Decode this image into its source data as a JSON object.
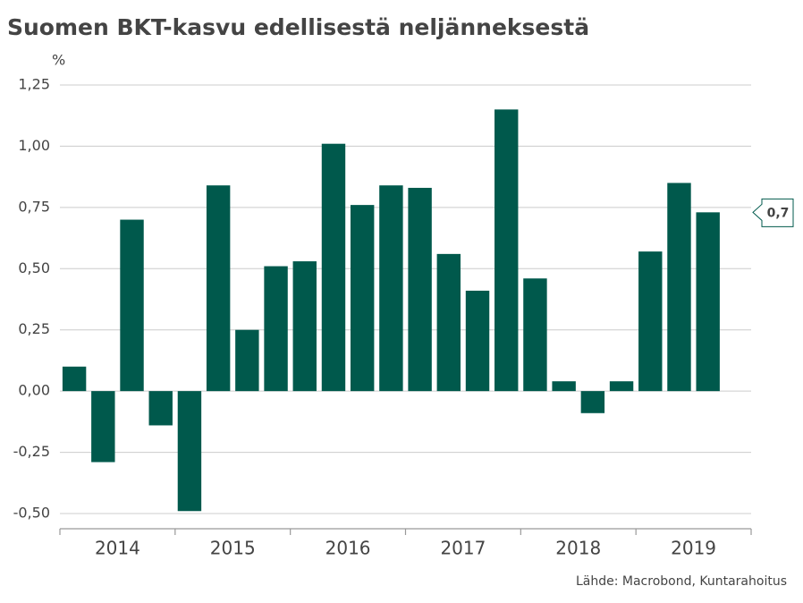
{
  "chart_data": {
    "type": "bar",
    "title": "Suomen BKT-kasvu edellisestä neljänneksestä",
    "y_unit": "%",
    "source": "Lähde: Macrobond, Kuntarahoitus",
    "annotation": "0,7",
    "year_labels": [
      "2014",
      "2015",
      "2016",
      "2017",
      "2018",
      "2019"
    ],
    "values": [
      0.1,
      -0.29,
      0.7,
      -0.14,
      -0.49,
      0.84,
      0.25,
      0.51,
      0.53,
      1.01,
      0.76,
      0.84,
      0.83,
      0.56,
      0.41,
      1.15,
      0.46,
      0.04,
      -0.09,
      0.04,
      0.57,
      0.85,
      0.73
    ],
    "color": "#00594c",
    "ylim": [
      -0.5,
      1.25
    ],
    "yticks": [
      {
        "value": -0.5,
        "label": "-0,50"
      },
      {
        "value": -0.25,
        "label": "-0,25"
      },
      {
        "value": 0,
        "label": "0,00"
      },
      {
        "value": 0.25,
        "label": "0,25"
      },
      {
        "value": 0.5,
        "label": "0,50"
      },
      {
        "value": 0.75,
        "label": "0,75"
      },
      {
        "value": 1.0,
        "label": "1,00"
      },
      {
        "value": 1.25,
        "label": "1,25"
      }
    ],
    "grid": true
  }
}
